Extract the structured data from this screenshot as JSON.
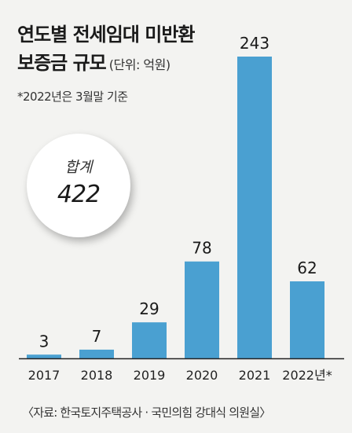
{
  "title_line1": "연도별 전세임대 미반환",
  "title_line2": "보증금 규모",
  "unit": "(단위: 억원)",
  "note": "*2022년은 3월말 기준",
  "total": {
    "label": "합계",
    "value": "422"
  },
  "source": "〈자료: 한국토지주택공사 · 국민의힘 강대식 의원실〉",
  "chart_data": {
    "type": "bar",
    "title": "연도별 전세임대 미반환 보증금 규모",
    "ylabel": "억원",
    "categories": [
      "2017",
      "2018",
      "2019",
      "2020",
      "2021",
      "2022년*"
    ],
    "values": [
      3,
      7,
      29,
      78,
      243,
      62
    ],
    "value_labels": [
      "3",
      "7",
      "29",
      "78",
      "243",
      "62"
    ],
    "ylim": [
      0,
      243
    ],
    "grid": false,
    "bar_color": "#4aa0d1",
    "axis_color": "#222222"
  }
}
